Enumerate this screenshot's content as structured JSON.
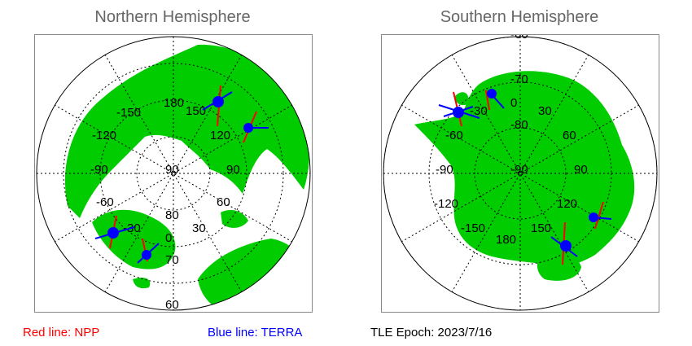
{
  "north": {
    "title": "Northern Hemisphere",
    "lon_labels": [
      "180",
      "-150",
      "150",
      "-120",
      "120",
      "-90",
      "90",
      "-60",
      "60",
      "-30",
      "30",
      "0"
    ],
    "lat_labels": [
      "90",
      "80",
      "70",
      "60"
    ]
  },
  "south": {
    "title": "Southern Hemisphere",
    "lon_labels": [
      "-30",
      "0",
      "30",
      "-60",
      "60",
      "-90",
      "90",
      "-120",
      "120",
      "-150",
      "150",
      "180"
    ],
    "lat_labels": [
      "-60",
      "-70",
      "-80",
      "-90"
    ]
  },
  "legend": {
    "red": "Red line: NPP",
    "blue": "Blue line: TERRA",
    "epoch": "TLE Epoch: 2023/7/16"
  },
  "colors": {
    "land": "#00cc00",
    "npp": "#ff0000",
    "terra": "#0000ff",
    "grid": "#000000"
  }
}
